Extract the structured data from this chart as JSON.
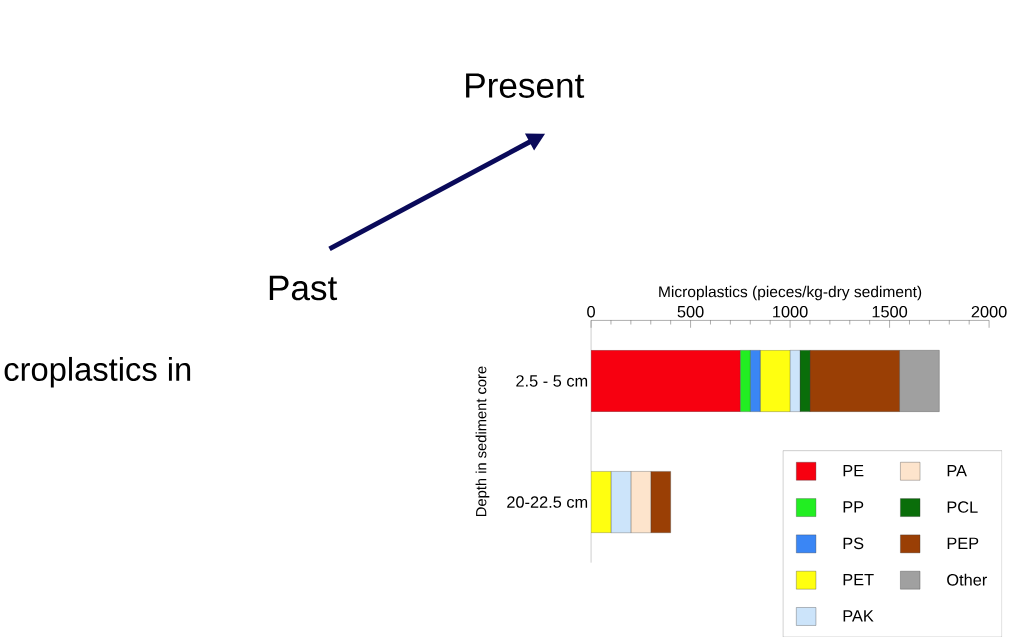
{
  "chart_data": {
    "type": "bar",
    "orientation": "horizontal",
    "stacked": true,
    "xlabel": "Microplastics (pieces/kg-dry sediment)",
    "ylabel": "Depth in sediment core",
    "categories": [
      "2.5 - 5 cm",
      "20-22.5 cm"
    ],
    "xlim": [
      0,
      2000
    ],
    "xticks": [
      0,
      {
        "value": 100,
        "label": null
      },
      {
        "value": 200,
        "label": null
      },
      {
        "value": 300,
        "label": null
      },
      {
        "value": 400,
        "label": null
      },
      500,
      {
        "value": 600,
        "label": null
      },
      {
        "value": 700,
        "label": null
      },
      {
        "value": 800,
        "label": null
      },
      {
        "value": 900,
        "label": null
      },
      1000,
      {
        "value": 1100,
        "label": null
      },
      {
        "value": 1200,
        "label": null
      },
      {
        "value": 1300,
        "label": null
      },
      {
        "value": 1400,
        "label": null
      },
      1500,
      {
        "value": 1600,
        "label": null
      },
      {
        "value": 1700,
        "label": null
      },
      {
        "value": 1800,
        "label": null
      },
      {
        "value": 1900,
        "label": null
      },
      2000
    ],
    "series": [
      {
        "name": "PE",
        "color": "#f70010",
        "values": [
          750,
          0
        ]
      },
      {
        "name": "PP",
        "color": "#22ee22",
        "values": [
          50,
          0
        ]
      },
      {
        "name": "PS",
        "color": "#3a86f5",
        "values": [
          50,
          0
        ]
      },
      {
        "name": "PET",
        "color": "#ffff10",
        "values": [
          150,
          100
        ]
      },
      {
        "name": "PAK",
        "color": "#cce4fa",
        "values": [
          50,
          100
        ]
      },
      {
        "name": "PA",
        "color": "#fde4cc",
        "values": [
          0,
          100
        ]
      },
      {
        "name": "PCL",
        "color": "#0a6e0a",
        "values": [
          50,
          0
        ]
      },
      {
        "name": "PEP",
        "color": "#9a3f05",
        "values": [
          450,
          100
        ]
      },
      {
        "name": "Other",
        "color": "#a0a0a0",
        "values": [
          200,
          0
        ]
      }
    ],
    "legend": "bottom right",
    "grid": false,
    "annotations": [
      "Present",
      "Past",
      "croplastics in"
    ]
  }
}
